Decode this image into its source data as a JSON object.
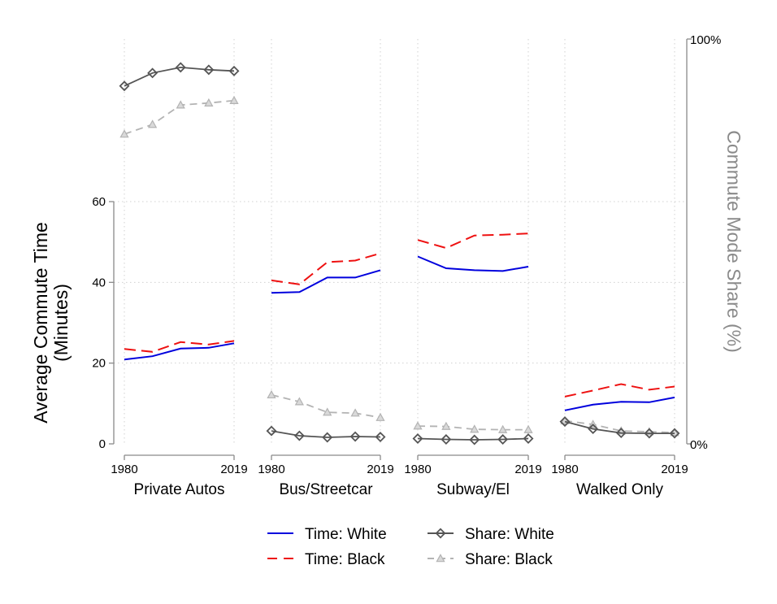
{
  "chart_data": {
    "type": "line",
    "ylabel_lines": [
      "Average Commute Time",
      "(Minutes)"
    ],
    "y2label": "Commute Mode Share (%)",
    "y_ticks": [
      0,
      20,
      40,
      60
    ],
    "ylim": [
      0,
      60
    ],
    "y2_ticks": [
      "0%",
      "100%"
    ],
    "y2lim": [
      0,
      100
    ],
    "x_tick_labels": [
      "1980",
      "2019"
    ],
    "x_years": [
      1980,
      1990,
      2000,
      2010,
      2019
    ],
    "grid": true,
    "legend_position": "bottom",
    "series": [
      {
        "key": "time_white",
        "name": "Time: White",
        "axis": "left",
        "color": "#0000dd",
        "dash": "solid",
        "marker": "none"
      },
      {
        "key": "time_black",
        "name": "Time: Black",
        "axis": "left",
        "color": "#ee1111",
        "dash": "dashed",
        "marker": "none"
      },
      {
        "key": "share_white",
        "name": "Share: White",
        "axis": "right",
        "color": "#555555",
        "dash": "solid",
        "marker": "diamond"
      },
      {
        "key": "share_black",
        "name": "Share: Black",
        "axis": "right",
        "color": "#b3b3b3",
        "dash": "dashed",
        "marker": "triangle"
      }
    ],
    "panels": [
      {
        "label": "Private Autos",
        "time_white": [
          20.9,
          21.7,
          23.6,
          23.8,
          24.9
        ],
        "time_black": [
          23.5,
          22.8,
          25.2,
          24.6,
          25.5
        ],
        "share_white": [
          88.4,
          91.6,
          93.0,
          92.4,
          92.1
        ],
        "share_black": [
          76.5,
          78.9,
          83.7,
          84.2,
          84.8
        ]
      },
      {
        "label": "Bus/Streetcar",
        "time_white": [
          37.4,
          37.6,
          41.2,
          41.2,
          43.0
        ],
        "time_black": [
          40.5,
          39.5,
          45.0,
          45.4,
          47.2
        ],
        "share_white": [
          3.2,
          2.0,
          1.6,
          1.8,
          1.7
        ],
        "share_black": [
          12.1,
          10.4,
          7.8,
          7.6,
          6.5
        ]
      },
      {
        "label": "Subway/El",
        "time_white": [
          46.4,
          43.5,
          43.0,
          42.8,
          43.9
        ],
        "time_black": [
          50.5,
          48.5,
          51.6,
          51.8,
          52.1
        ],
        "share_white": [
          1.3,
          1.1,
          1.0,
          1.1,
          1.3
        ],
        "share_black": [
          4.4,
          4.3,
          3.6,
          3.5,
          3.5
        ]
      },
      {
        "label": "Walked Only",
        "time_white": [
          8.3,
          9.7,
          10.4,
          10.3,
          11.5
        ],
        "time_black": [
          11.7,
          13.2,
          14.8,
          13.4,
          14.2
        ],
        "share_white": [
          5.5,
          3.7,
          2.7,
          2.6,
          2.6
        ],
        "share_black": [
          5.7,
          4.8,
          3.2,
          3.0,
          2.8
        ]
      }
    ]
  }
}
